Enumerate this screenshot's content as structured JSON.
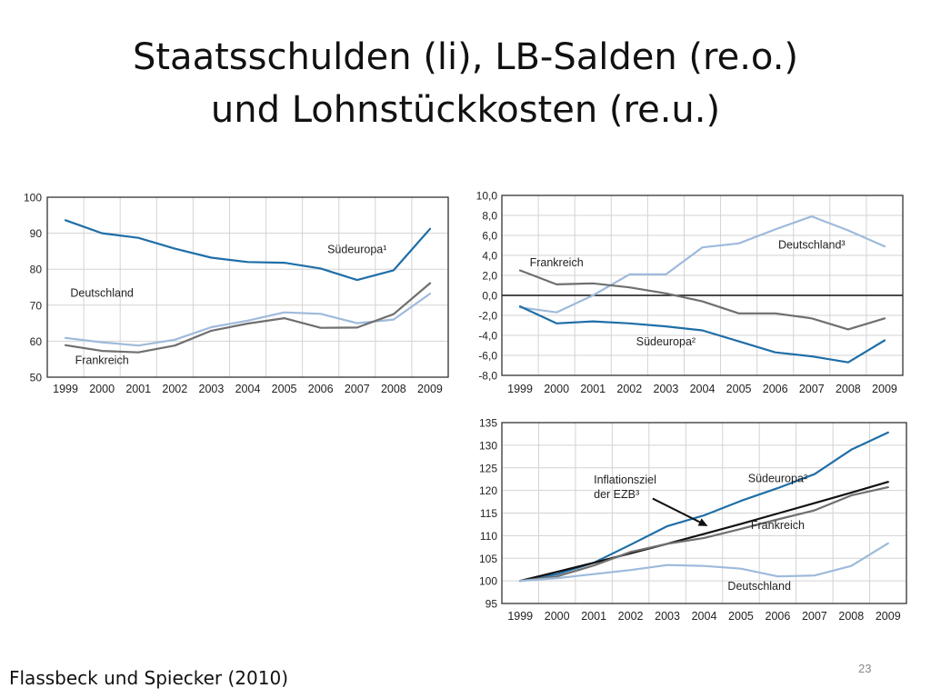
{
  "slide": {
    "title_line1": "Staatsschulden (li), LB-Salden (re.o.)",
    "title_line2": "und Lohnstückkosten (re.u.)",
    "source": "Flassbeck und Spiecker (2010)",
    "page_number": "23"
  },
  "colors": {
    "suedeuropa": "#1f6ea8",
    "deutschland": "#9ebadb",
    "frankreich": "#6f6f6f",
    "ezb": "#111111",
    "frame": "#333333",
    "grid": "#d3d3d3",
    "plot_bg": "#ffffff"
  },
  "chart_data": [
    {
      "type": "line",
      "title": "",
      "xlabel": "",
      "ylabel": "",
      "x": [
        "1999",
        "2000",
        "2001",
        "2002",
        "2003",
        "2004",
        "2005",
        "2006",
        "2007",
        "2008",
        "2009"
      ],
      "ylim": [
        50,
        100
      ],
      "yticks": [
        "50",
        "60",
        "70",
        "80",
        "90",
        "100"
      ],
      "grid": true,
      "series": [
        {
          "name": "Südeuropa¹",
          "color_key": "suedeuropa",
          "values": [
            93.6,
            90.0,
            88.7,
            85.7,
            83.2,
            82.0,
            81.8,
            80.2,
            77.0,
            79.7,
            91.2
          ]
        },
        {
          "name": "Deutschland",
          "color_key": "deutschland",
          "values": [
            60.9,
            59.7,
            58.8,
            60.4,
            63.9,
            65.7,
            68.0,
            67.6,
            65.0,
            66.0,
            73.2
          ]
        },
        {
          "name": "Frankreich",
          "color_key": "frankreich",
          "values": [
            58.9,
            57.3,
            56.9,
            58.8,
            62.9,
            64.9,
            66.4,
            63.7,
            63.8,
            67.5,
            76.1
          ]
        }
      ],
      "labels": [
        {
          "series": "Südeuropa¹",
          "text": "Südeuropa¹",
          "at": [
            "2007",
            84.5
          ]
        },
        {
          "series": "Deutschland",
          "text": "Deutschland",
          "at": [
            "2000",
            72.3
          ]
        },
        {
          "series": "Frankreich",
          "text": "Frankreich",
          "at": [
            "2000",
            53.6
          ]
        }
      ]
    },
    {
      "type": "line",
      "title": "",
      "xlabel": "",
      "ylabel": "",
      "x": [
        "1999",
        "2000",
        "2001",
        "2002",
        "2003",
        "2004",
        "2005",
        "2006",
        "2007",
        "2008",
        "2009"
      ],
      "ylim": [
        -8,
        10
      ],
      "yticks": [
        "10,0",
        "8,0",
        "6,0",
        "4,0",
        "2,0",
        "0,0",
        "-2,0",
        "-4,0",
        "-6,0",
        "-8,0"
      ],
      "grid": true,
      "zero_line": true,
      "series": [
        {
          "name": "Deutschland³",
          "color_key": "deutschland",
          "values": [
            -1.2,
            -1.7,
            0.0,
            2.1,
            2.1,
            4.8,
            5.2,
            6.6,
            7.9,
            6.5,
            4.9
          ]
        },
        {
          "name": "Frankreich",
          "color_key": "frankreich",
          "values": [
            2.5,
            1.1,
            1.2,
            0.8,
            0.2,
            -0.6,
            -1.8,
            -1.8,
            -2.3,
            -3.4,
            -2.3
          ]
        },
        {
          "name": "Südeuropa²",
          "color_key": "suedeuropa",
          "values": [
            -1.1,
            -2.8,
            -2.6,
            -2.8,
            -3.1,
            -3.5,
            -4.6,
            -5.7,
            -6.1,
            -6.7,
            -4.5
          ]
        }
      ],
      "labels": [
        {
          "series": "Deutschland³",
          "text": "Deutschland³",
          "at": [
            "2007",
            4.7
          ]
        },
        {
          "series": "Frankreich",
          "text": "Frankreich",
          "at": [
            "2000",
            2.9
          ]
        },
        {
          "series": "Südeuropa²",
          "text": "Südeuropa²",
          "at": [
            "2003",
            -5.0
          ]
        }
      ]
    },
    {
      "type": "line",
      "title": "",
      "xlabel": "",
      "ylabel": "",
      "x": [
        "1999",
        "2000",
        "2001",
        "2002",
        "2003",
        "2004",
        "2005",
        "2006",
        "2007",
        "2008",
        "2009"
      ],
      "ylim": [
        95,
        135
      ],
      "yticks": [
        "95",
        "100",
        "105",
        "110",
        "115",
        "120",
        "125",
        "130",
        "135"
      ],
      "grid": true,
      "series": [
        {
          "name": "Südeuropa²",
          "color_key": "suedeuropa",
          "values": [
            100,
            101.5,
            104.0,
            108.0,
            112.1,
            114.5,
            117.7,
            120.5,
            123.6,
            129.0,
            132.8
          ]
        },
        {
          "name": "Inflationsziel der EZB³",
          "color_key": "ezb",
          "values": [
            100,
            102.0,
            104.0,
            106.1,
            108.2,
            110.4,
            112.6,
            114.9,
            117.2,
            119.5,
            121.9
          ]
        },
        {
          "name": "Frankreich",
          "color_key": "frankreich",
          "values": [
            100,
            101.0,
            103.4,
            106.4,
            108.2,
            109.5,
            111.5,
            113.6,
            115.6,
            118.9,
            120.7
          ]
        },
        {
          "name": "Deutschland",
          "color_key": "deutschland",
          "values": [
            100,
            100.6,
            101.5,
            102.4,
            103.5,
            103.3,
            102.7,
            101.0,
            101.2,
            103.3,
            108.3
          ]
        }
      ],
      "labels": [
        {
          "series": "Südeuropa²",
          "text": "Südeuropa²",
          "at": [
            "2006",
            121.8
          ]
        },
        {
          "series": "Frankreich",
          "text": "Frankreich",
          "at": [
            "2006",
            111.5
          ]
        },
        {
          "series": "Deutschland",
          "text": "Deutschland",
          "at": [
            "2005.5",
            98.0
          ]
        }
      ],
      "annotation": {
        "line1": "Inflationsziel",
        "line2": "der EZB³",
        "at": [
          "2001",
          121.5
        ],
        "arrow_from": [
          "2002.6",
          118.2
        ],
        "arrow_to": [
          "2004.1",
          112.1
        ]
      }
    }
  ]
}
